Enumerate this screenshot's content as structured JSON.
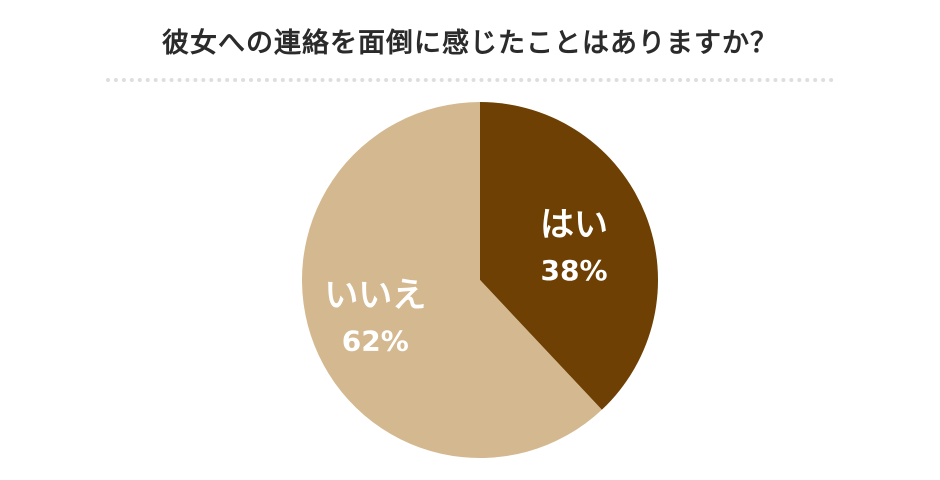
{
  "title": "彼女への連絡を面倒に感じたことはありますか？",
  "chart_data": {
    "type": "pie",
    "title": "彼女への連絡を面倒に感じたことはありますか？",
    "slices": [
      {
        "label": "はい",
        "value": 38,
        "value_label": "38%",
        "color": "#6e4004"
      },
      {
        "label": "いいえ",
        "value": 62,
        "value_label": "62%",
        "color": "#d4b88f"
      }
    ],
    "start_angle": "12 o'clock",
    "direction": "clockwise",
    "legend": "none",
    "labels": "inside slices"
  }
}
